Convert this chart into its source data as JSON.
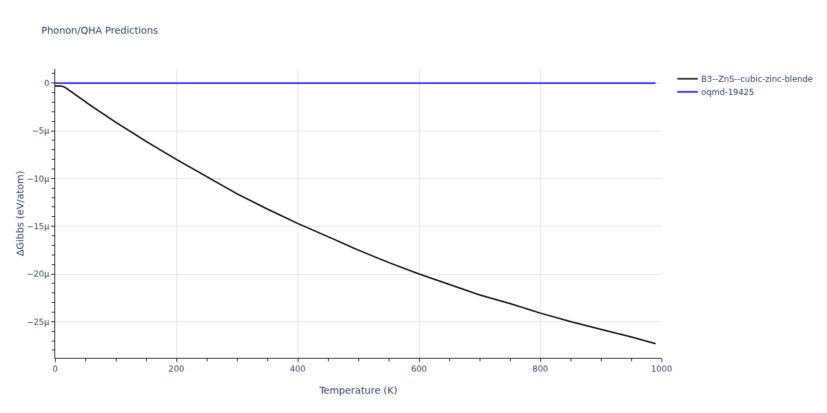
{
  "chart_data": {
    "type": "line",
    "title": "Phonon/QHA Predictions",
    "xlabel": "Temperature (K)",
    "ylabel": "ΔGibbs (eV/atom)",
    "xlim": [
      0,
      1000
    ],
    "ylim": [
      -28.8,
      1.5
    ],
    "xticks": [
      0,
      {
        "value": 50,
        "label": null
      },
      {
        "value": 100,
        "label": null
      },
      {
        "value": 150,
        "label": null
      },
      200,
      {
        "value": 250,
        "label": null
      },
      {
        "value": 300,
        "label": null
      },
      {
        "value": 350,
        "label": null
      },
      400,
      {
        "value": 450,
        "label": null
      },
      {
        "value": 500,
        "label": null
      },
      {
        "value": 550,
        "label": null
      },
      600,
      {
        "value": 650,
        "label": null
      },
      {
        "value": 700,
        "label": null
      },
      {
        "value": 750,
        "label": null
      },
      800,
      {
        "value": 850,
        "label": null
      },
      {
        "value": 900,
        "label": null
      },
      {
        "value": 950,
        "label": null
      },
      1000
    ],
    "yticks": [
      {
        "value": 1,
        "label": null
      },
      0,
      {
        "value": -1,
        "label": null
      },
      {
        "value": -2,
        "label": null
      },
      {
        "value": -3,
        "label": null
      },
      {
        "value": -4,
        "label": null
      },
      {
        "value": -5,
        "label": "−5µ"
      },
      {
        "value": -6,
        "label": null
      },
      {
        "value": -7,
        "label": null
      },
      {
        "value": -8,
        "label": null
      },
      {
        "value": -9,
        "label": null
      },
      {
        "value": -10,
        "label": "−10µ"
      },
      {
        "value": -11,
        "label": null
      },
      {
        "value": -12,
        "label": null
      },
      {
        "value": -13,
        "label": null
      },
      {
        "value": -14,
        "label": null
      },
      {
        "value": -15,
        "label": "−15µ"
      },
      {
        "value": -16,
        "label": null
      },
      {
        "value": -17,
        "label": null
      },
      {
        "value": -18,
        "label": null
      },
      {
        "value": -19,
        "label": null
      },
      {
        "value": -20,
        "label": "−20µ"
      },
      {
        "value": -21,
        "label": null
      },
      {
        "value": -22,
        "label": null
      },
      {
        "value": -23,
        "label": null
      },
      {
        "value": -24,
        "label": null
      },
      {
        "value": -25,
        "label": "−25µ"
      },
      {
        "value": -26,
        "label": null
      },
      {
        "value": -27,
        "label": null
      },
      {
        "value": -28,
        "label": null
      }
    ],
    "grid": true,
    "legend": "top right",
    "marker": "none",
    "line_style": "solid",
    "series": [
      {
        "name": "B3--ZnS--cubic-zinc-blende",
        "color": "#000000",
        "x": [
          0,
          10,
          15,
          20,
          40,
          60,
          100,
          150,
          200,
          250,
          300,
          350,
          400,
          450,
          500,
          550,
          600,
          650,
          700,
          750,
          800,
          850,
          900,
          950,
          990
        ],
        "values": [
          -0.3,
          -0.3,
          -0.4,
          -0.6,
          -1.5,
          -2.4,
          -4.1,
          -6.1,
          -8.0,
          -9.8,
          -11.6,
          -13.2,
          -14.7,
          -16.1,
          -17.5,
          -18.8,
          -20.0,
          -21.1,
          -22.2,
          -23.1,
          -24.1,
          -25.0,
          -25.8,
          -26.6,
          -27.3
        ]
      },
      {
        "name": "oqmd-19425",
        "color": "#0000ff",
        "x": [
          0,
          990
        ],
        "values": [
          0,
          0
        ]
      }
    ]
  }
}
